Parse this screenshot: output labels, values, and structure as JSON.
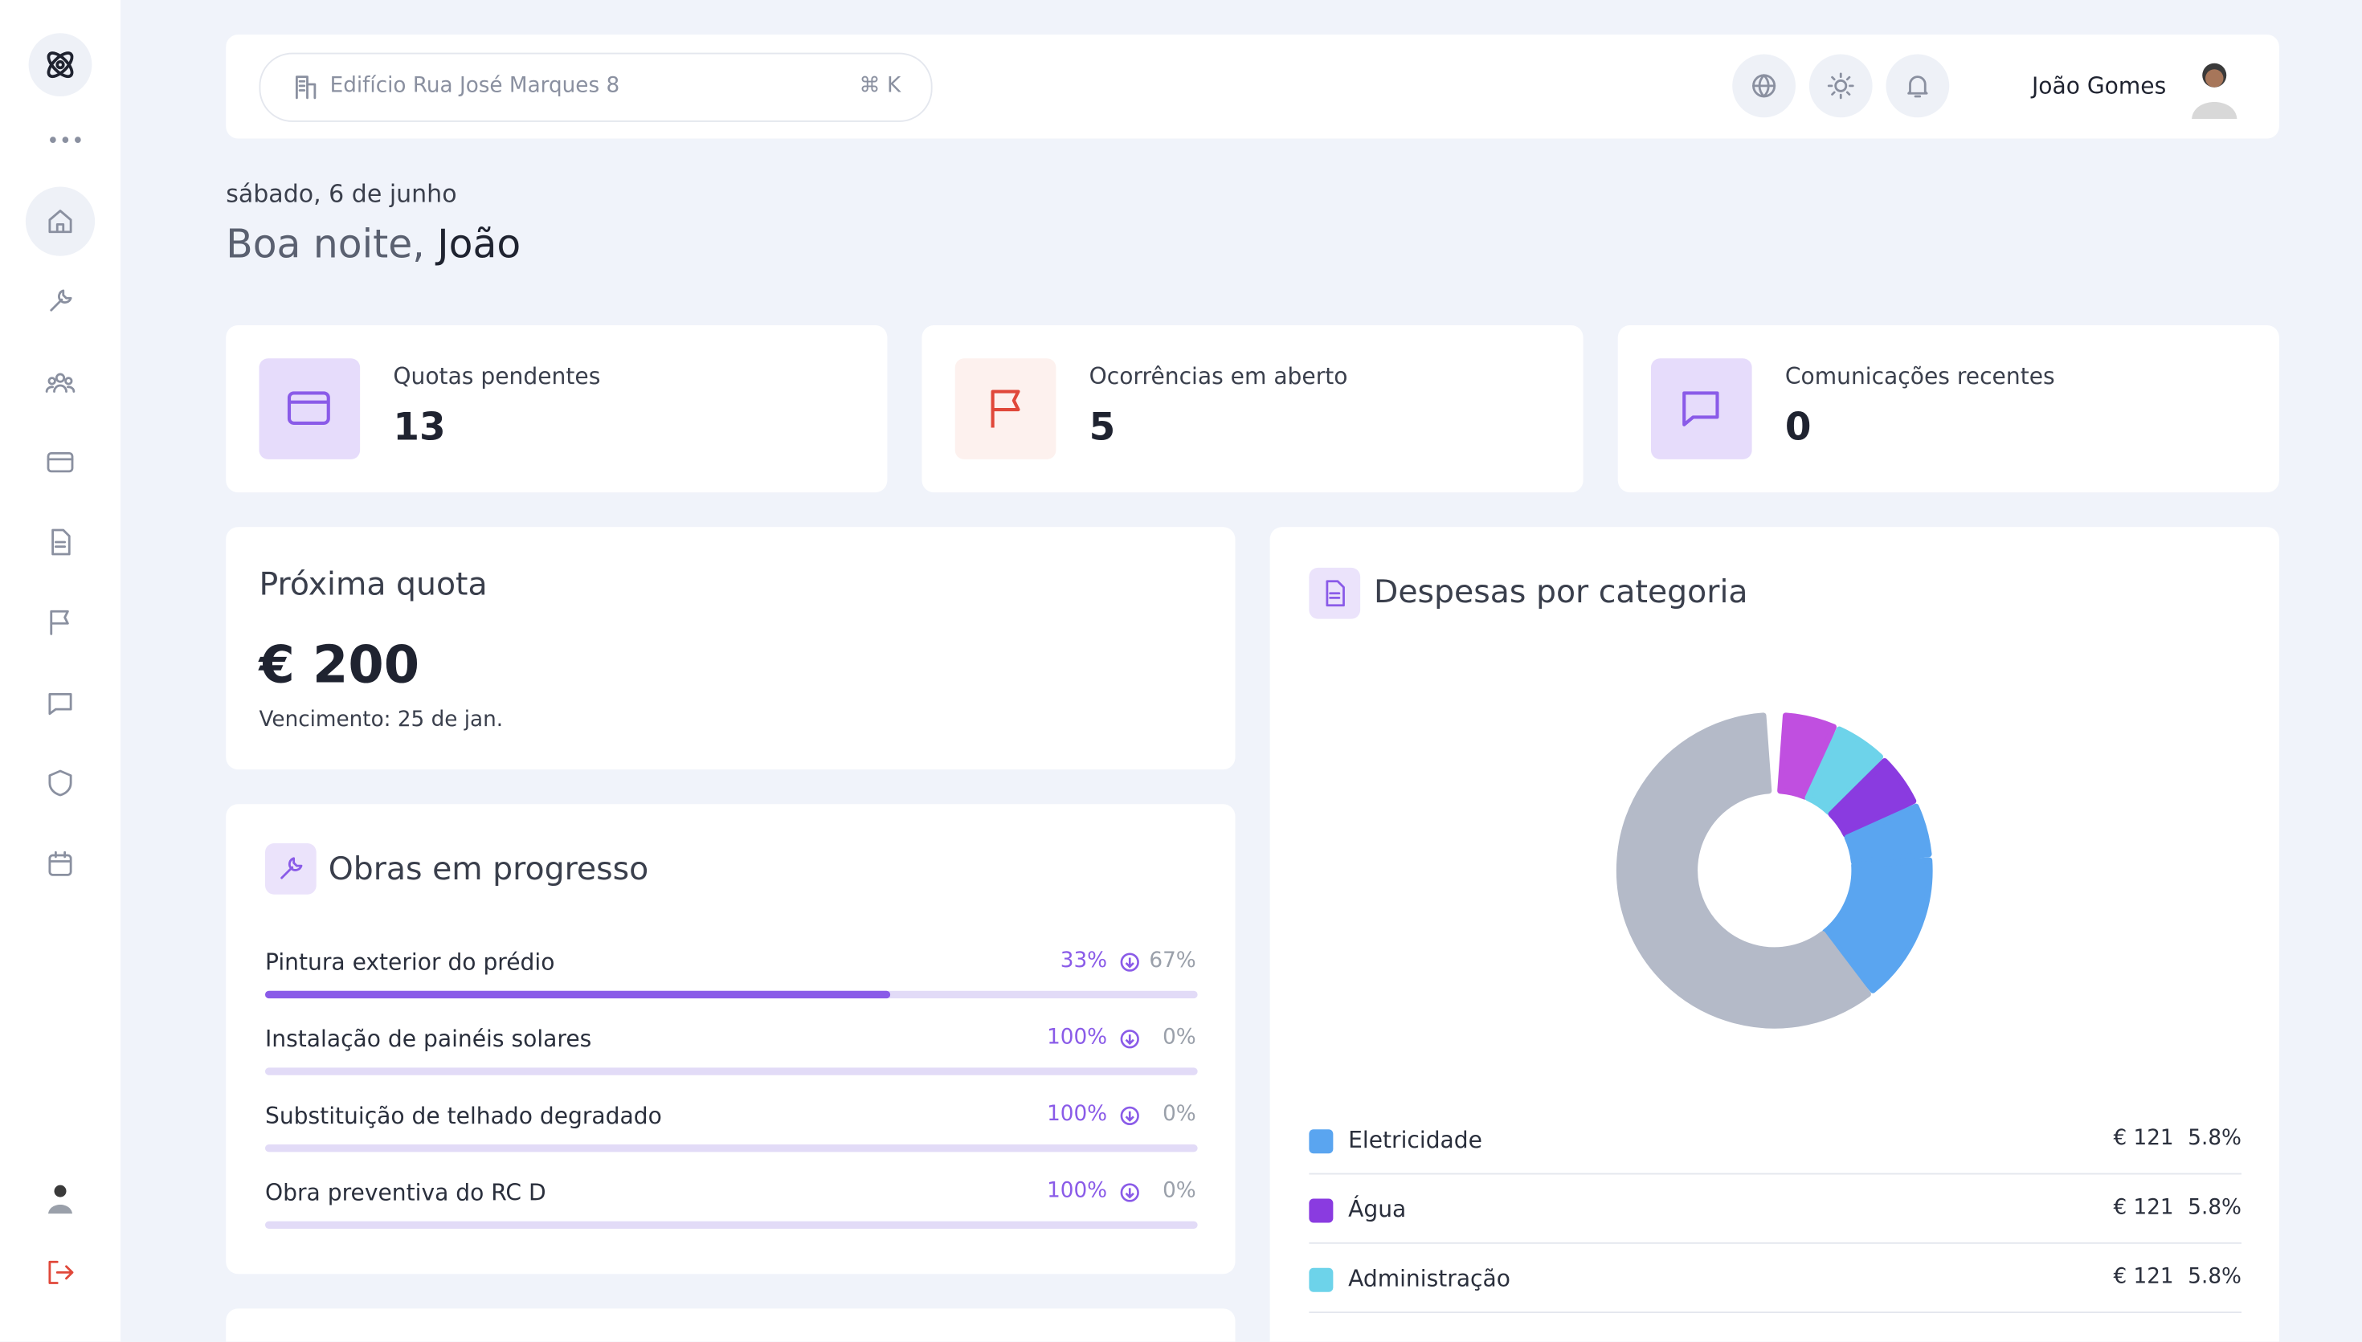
{
  "search": {
    "placeholder": "Edifício Rua José Marques 8",
    "shortcut": "⌘ K"
  },
  "user": {
    "name": "João Gomes"
  },
  "greeting": {
    "date": "sábado, 6 de junho",
    "salutation": "Boa noite,",
    "name": "João"
  },
  "stats": [
    {
      "label": "Quotas pendentes",
      "value": 13
    },
    {
      "label": "Ocorrências em aberto",
      "value": 5
    },
    {
      "label": "Comunicações recentes",
      "value": 0
    }
  ],
  "next_quota": {
    "title": "Próxima quota",
    "amount": "€ 200",
    "due": "Vencimento: 25 de jan."
  },
  "works": {
    "title": "Obras em progresso",
    "items": [
      {
        "name": "Pintura exterior do prédio",
        "done_label": "33%",
        "remaining": 67,
        "remaining_label": "67%"
      },
      {
        "name": "Instalação de painéis solares",
        "done_label": "100%",
        "remaining": 0,
        "remaining_label": "0%"
      },
      {
        "name": "Substituição de telhado degradado",
        "done_label": "100%",
        "remaining": 0,
        "remaining_label": "0%"
      },
      {
        "name": "Obra preventiva do RC D",
        "done_label": "100%",
        "remaining": 0,
        "remaining_label": "0%"
      }
    ]
  },
  "expenses": {
    "title": "Despesas por categoria",
    "segments": [
      {
        "color": "#c04fe0",
        "value": 5.8
      },
      {
        "color": "#6dd3ea",
        "value": 5.8
      },
      {
        "color": "#8a3be0",
        "value": 5.8
      },
      {
        "color": "#5aa5f0",
        "value": 5.8
      },
      {
        "color": "#5aa5f0",
        "value": 16
      },
      {
        "color": "#b4bac8",
        "value": 60.8
      }
    ],
    "legend": [
      {
        "name": "Eletricidade",
        "color": "#5aa5f0",
        "amount": "€ 121",
        "share": "5.8%"
      },
      {
        "name": "Água",
        "color": "#8a3be0",
        "amount": "€ 121",
        "share": "5.8%"
      },
      {
        "name": "Administração",
        "color": "#6dd3ea",
        "amount": "€ 121",
        "share": "5.8%"
      }
    ]
  }
}
